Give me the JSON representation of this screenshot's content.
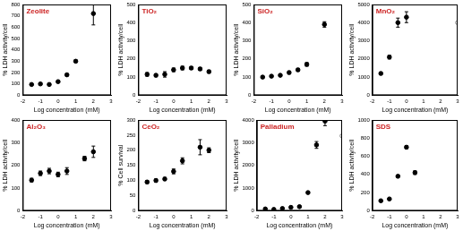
{
  "chart_data": [
    {
      "type": "scatter",
      "title": "Zeolite",
      "x_label": "Log concentration (mM)",
      "y_label": "% LDH activity/cell",
      "xlim": [
        -2,
        3
      ],
      "xticks": [
        -2,
        -1,
        0,
        1,
        2,
        3
      ],
      "ylim": [
        0,
        800
      ],
      "yticks": [
        0,
        100,
        200,
        300,
        400,
        500,
        600,
        700,
        800
      ],
      "grid": false,
      "series": [
        {
          "color": "#000000",
          "marker": "circle",
          "x": [
            -1.5,
            -1,
            -0.5,
            0,
            0.5,
            1,
            2
          ],
          "values": [
            95,
            100,
            95,
            120,
            180,
            300,
            720
          ],
          "errors": [
            5,
            5,
            5,
            8,
            10,
            10,
            100
          ]
        }
      ]
    },
    {
      "type": "scatter",
      "title": "TiO₂",
      "x_label": "Log concentration (mM)",
      "y_label": "% LDH activity/cell",
      "xlim": [
        -2,
        3
      ],
      "xticks": [
        -2,
        -1,
        0,
        1,
        2,
        3
      ],
      "ylim": [
        0,
        500
      ],
      "yticks": [
        0,
        100,
        200,
        300,
        400,
        500
      ],
      "grid": false,
      "series": [
        {
          "color": "#000000",
          "marker": "circle",
          "x": [
            -1.5,
            -1,
            -0.5,
            0,
            0.5,
            1,
            1.5,
            2
          ],
          "values": [
            115,
            110,
            115,
            140,
            150,
            150,
            145,
            130
          ],
          "errors": [
            10,
            8,
            15,
            10,
            10,
            8,
            8,
            8
          ]
        }
      ]
    },
    {
      "type": "scatter",
      "title": "SiO₂",
      "x_label": "Log concentration (mM)",
      "y_label": "% LDH activity/cell",
      "xlim": [
        -2,
        3
      ],
      "xticks": [
        -2,
        -1,
        0,
        1,
        2,
        3
      ],
      "ylim": [
        0,
        500
      ],
      "yticks": [
        0,
        100,
        200,
        300,
        400,
        500
      ],
      "grid": false,
      "series": [
        {
          "color": "#000000",
          "marker": "circle",
          "x": [
            -1.5,
            -1,
            -0.5,
            0,
            0.5,
            1,
            2
          ],
          "values": [
            100,
            105,
            110,
            125,
            140,
            170,
            390
          ],
          "errors": [
            5,
            5,
            5,
            8,
            8,
            10,
            15
          ]
        }
      ]
    },
    {
      "type": "scatter",
      "title": "MnO₂",
      "x_label": "Log concentration (mM)",
      "y_label": "% LDH activity/cell",
      "xlim": [
        -2,
        3
      ],
      "xticks": [
        -2,
        -1,
        0,
        1,
        2,
        3
      ],
      "ylim": [
        0,
        5000
      ],
      "yticks": [
        0,
        1000,
        2000,
        3000,
        4000,
        5000
      ],
      "grid": false,
      "series": [
        {
          "color": "#000000",
          "marker": "circle",
          "x": [
            -1.5,
            -1,
            -0.5,
            0
          ],
          "values": [
            1200,
            2100,
            4000,
            4300
          ],
          "errors": [
            50,
            100,
            250,
            300
          ]
        },
        {
          "color": "#808080",
          "marker": "open",
          "x": [
            3
          ],
          "values": [
            4000
          ],
          "errors": [
            0
          ]
        }
      ]
    },
    {
      "type": "scatter",
      "title": "Al₂O₃",
      "x_label": "Log concentration (mM)",
      "y_label": "% LDH activity/cell",
      "xlim": [
        -2,
        3
      ],
      "xticks": [
        -2,
        -1,
        0,
        1,
        2,
        3
      ],
      "ylim": [
        0,
        400
      ],
      "yticks": [
        0,
        100,
        200,
        300,
        400
      ],
      "grid": false,
      "series": [
        {
          "color": "#000000",
          "marker": "circle",
          "x": [
            -1.5,
            -1,
            -0.5,
            0,
            0.5,
            1.5,
            2
          ],
          "values": [
            135,
            165,
            175,
            160,
            175,
            230,
            260
          ],
          "errors": [
            8,
            10,
            12,
            10,
            15,
            10,
            25
          ]
        }
      ]
    },
    {
      "type": "scatter",
      "title": "CeO₂",
      "x_label": "Log concentration (mM)",
      "y_label": "% Cell survival",
      "xlim": [
        -2,
        3
      ],
      "xticks": [
        -2,
        -1,
        0,
        1,
        2,
        3
      ],
      "ylim": [
        0,
        300
      ],
      "yticks": [
        0,
        50,
        100,
        150,
        200,
        250,
        300
      ],
      "grid": false,
      "series": [
        {
          "color": "#000000",
          "marker": "circle",
          "x": [
            -1.5,
            -1,
            -0.5,
            0,
            0.5,
            1.5,
            2
          ],
          "values": [
            95,
            100,
            105,
            130,
            165,
            210,
            200
          ],
          "errors": [
            5,
            5,
            5,
            8,
            10,
            25,
            8
          ]
        }
      ]
    },
    {
      "type": "scatter",
      "title": "Palladium",
      "x_label": "Log concentration (mM)",
      "y_label": "% LDH activity/cell",
      "xlim": [
        -2,
        3
      ],
      "xticks": [
        -2,
        -1,
        0,
        1,
        2,
        3
      ],
      "ylim": [
        0,
        4000
      ],
      "yticks": [
        0,
        1000,
        2000,
        3000,
        4000
      ],
      "grid": false,
      "series": [
        {
          "color": "#000000",
          "marker": "circle",
          "x": [
            -1.5,
            -1,
            -0.5,
            0,
            0.5,
            1,
            1.5,
            2
          ],
          "values": [
            80,
            60,
            100,
            150,
            180,
            800,
            2900,
            3950
          ],
          "errors": [
            10,
            10,
            10,
            10,
            20,
            40,
            150,
            200
          ]
        },
        {
          "color": "#808080",
          "marker": "open",
          "x": [
            3
          ],
          "values": [
            3300
          ],
          "errors": [
            0
          ]
        }
      ]
    },
    {
      "type": "scatter",
      "title": "SDS",
      "x_label": "Log concentration (mM)",
      "y_label": "% LDH activity/cell",
      "xlim": [
        -2,
        3
      ],
      "xticks": [
        -2,
        -1,
        0,
        1,
        2,
        3
      ],
      "ylim": [
        0,
        1000
      ],
      "yticks": [
        0,
        200,
        400,
        600,
        800,
        1000
      ],
      "grid": false,
      "series": [
        {
          "color": "#000000",
          "marker": "circle",
          "x": [
            -1.5,
            -1,
            -0.5,
            0,
            0.5
          ],
          "values": [
            110,
            130,
            380,
            700,
            420
          ],
          "errors": [
            5,
            5,
            10,
            15,
            20
          ]
        }
      ]
    }
  ]
}
